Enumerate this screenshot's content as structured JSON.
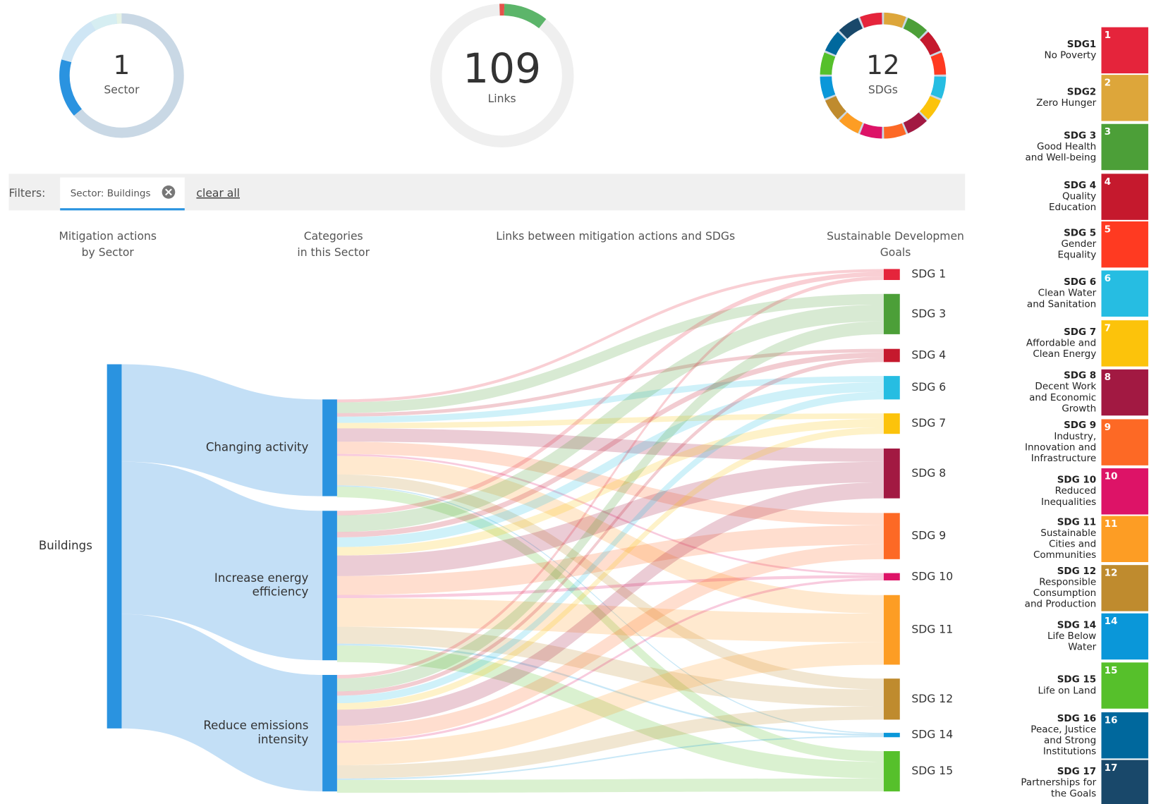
{
  "summary": [
    {
      "value": "1",
      "label": "Sector"
    },
    {
      "value": "109",
      "label": "Links"
    },
    {
      "value": "12",
      "label": "SDGs"
    }
  ],
  "filters": {
    "label": "Filters:",
    "chips": [
      "Sector: Buildings"
    ],
    "clear": "clear all"
  },
  "columns": [
    [
      "Mitigation actions",
      "by Sector"
    ],
    [
      "Categories",
      "in this Sector"
    ],
    [
      "Links between mitigation actions and SDGs"
    ],
    [
      "Sustainable Developmen",
      "Goals"
    ]
  ],
  "sankey": {
    "sector": "Buildings",
    "categories": [
      [
        "Changing activity"
      ],
      [
        "Increase energy",
        "efficiency"
      ],
      [
        "Reduce emissions",
        "intensity"
      ]
    ],
    "goals": [
      {
        "label": "SDG 1",
        "color": "#e5243b"
      },
      {
        "label": "SDG 3",
        "color": "#4c9f38"
      },
      {
        "label": "SDG 4",
        "color": "#c5192d"
      },
      {
        "label": "SDG 6",
        "color": "#26bde2"
      },
      {
        "label": "SDG 7",
        "color": "#fcc30b"
      },
      {
        "label": "SDG 8",
        "color": "#a21942"
      },
      {
        "label": "SDG 9",
        "color": "#fd6925"
      },
      {
        "label": "SDG 10",
        "color": "#dd1367"
      },
      {
        "label": "SDG 11",
        "color": "#fd9d24"
      },
      {
        "label": "SDG 12",
        "color": "#bf8b2e"
      },
      {
        "label": "SDG 14",
        "color": "#0a97d9"
      },
      {
        "label": "SDG 15",
        "color": "#56c02b"
      }
    ]
  },
  "legend": [
    {
      "number": "1",
      "title": "SDG1",
      "lines": [
        "No Poverty"
      ],
      "color": "#e5243b"
    },
    {
      "number": "2",
      "title": "SDG2",
      "lines": [
        "Zero Hunger"
      ],
      "color": "#dda63a"
    },
    {
      "number": "3",
      "title": "SDG 3",
      "lines": [
        "Good Health",
        "and Well-being"
      ],
      "color": "#4c9f38"
    },
    {
      "number": "4",
      "title": "SDG 4",
      "lines": [
        "Quality",
        "Education"
      ],
      "color": "#c5192d"
    },
    {
      "number": "5",
      "title": "SDG 5",
      "lines": [
        "Gender",
        "Equality"
      ],
      "color": "#ff3a21"
    },
    {
      "number": "6",
      "title": "SDG 6",
      "lines": [
        "Clean Water",
        "and Sanitation"
      ],
      "color": "#26bde2"
    },
    {
      "number": "7",
      "title": "SDG 7",
      "lines": [
        "Affordable and",
        "Clean Energy"
      ],
      "color": "#fcc30b"
    },
    {
      "number": "8",
      "title": "SDG 8",
      "lines": [
        "Decent Work",
        "and Economic",
        "Growth"
      ],
      "color": "#a21942"
    },
    {
      "number": "9",
      "title": "SDG 9",
      "lines": [
        "Industry,",
        "Innovation and",
        "Infrastructure"
      ],
      "color": "#fd6925"
    },
    {
      "number": "10",
      "title": "SDG 10",
      "lines": [
        "Reduced",
        "Inequalities"
      ],
      "color": "#dd1367"
    },
    {
      "number": "11",
      "title": "SDG 11",
      "lines": [
        "Sustainable",
        "Cities and",
        "Communities"
      ],
      "color": "#fd9d24"
    },
    {
      "number": "12",
      "title": "SDG 12",
      "lines": [
        "Responsible",
        "Consumption",
        "and Production"
      ],
      "color": "#bf8b2e"
    },
    {
      "number": "14",
      "title": "SDG 14",
      "lines": [
        "Life Below",
        "Water"
      ],
      "color": "#0a97d9"
    },
    {
      "number": "15",
      "title": "SDG 15",
      "lines": [
        "Life on Land"
      ],
      "color": "#56c02b"
    },
    {
      "number": "16",
      "title": "SDG 16",
      "lines": [
        "Peace, Justice",
        "and Strong",
        "Institutions"
      ],
      "color": "#00689d"
    },
    {
      "number": "17",
      "title": "SDG 17",
      "lines": [
        "Partnerships for",
        "the Goals"
      ],
      "color": "#19486a"
    }
  ]
}
